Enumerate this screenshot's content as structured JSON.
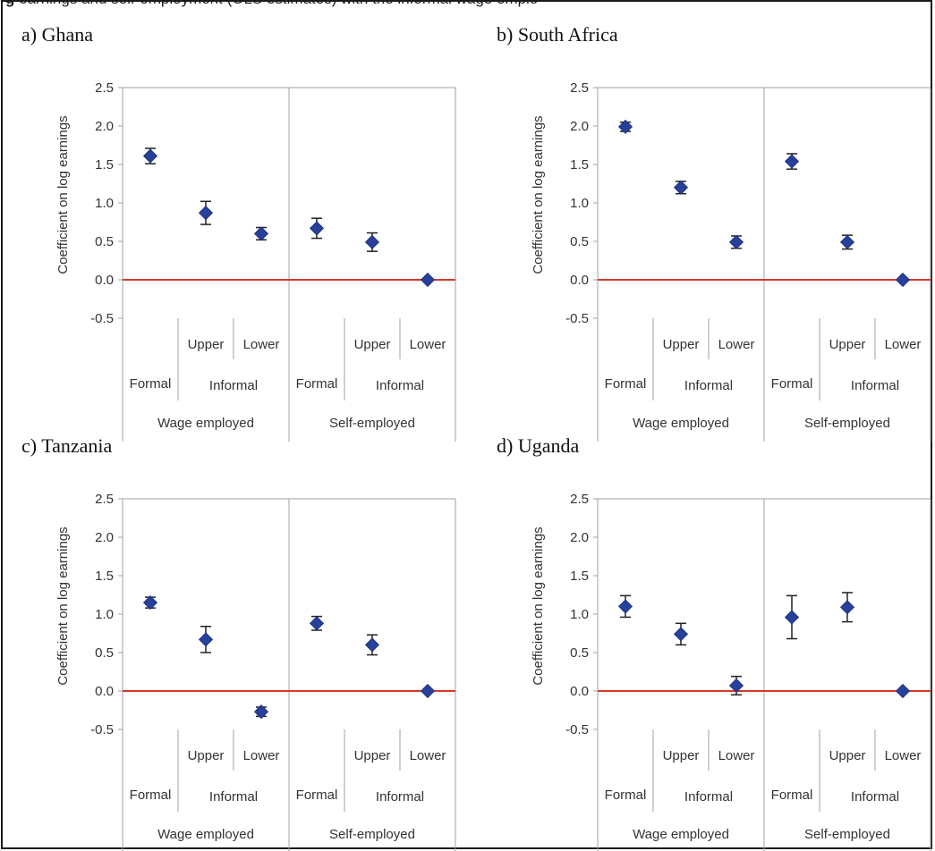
{
  "caption": {
    "lead": "g",
    "text": "earnings and self-employment (OLS estimates) with the informal wage emplo"
  },
  "colors": {
    "marker": "#27409a",
    "errorbar": "#222222",
    "zero_line": "#d63a2a",
    "divider": "#a0a0a0",
    "frame": "#1a1a1a"
  },
  "chart_data": [
    {
      "type": "scatter",
      "title": "a) Ghana",
      "ylabel": "Coefficient on log earnings",
      "ylim": [
        -0.5,
        2.5
      ],
      "yticks": [
        "2.5",
        "2.0",
        "1.5",
        "1.0",
        "0.5",
        "0.0",
        "-0.5"
      ],
      "categories": [
        {
          "group": "Wage employed",
          "sub": "",
          "type": "Formal"
        },
        {
          "group": "Wage employed",
          "sub": "Informal",
          "type": "Upper"
        },
        {
          "group": "Wage employed",
          "sub": "Informal",
          "type": "Lower"
        },
        {
          "group": "Self-employed",
          "sub": "",
          "type": "Formal"
        },
        {
          "group": "Self-employed",
          "sub": "Informal",
          "type": "Upper"
        },
        {
          "group": "Self-employed",
          "sub": "Informal",
          "type": "Lower"
        }
      ],
      "values": [
        1.61,
        0.87,
        0.6,
        0.67,
        0.49,
        0.0
      ],
      "ci_low": [
        1.51,
        0.72,
        0.52,
        0.54,
        0.37,
        0.0
      ],
      "ci_high": [
        1.71,
        1.02,
        0.68,
        0.8,
        0.61,
        0.0
      ],
      "zero_line": true
    },
    {
      "type": "scatter",
      "title": "b) South Africa",
      "ylabel": "Coefficient on log earnings",
      "ylim": [
        -0.5,
        2.5
      ],
      "yticks": [
        "2.5",
        "2.0",
        "1.5",
        "1.0",
        "0.5",
        "0.0",
        "-0.5"
      ],
      "categories": [
        {
          "group": "Wage employed",
          "sub": "",
          "type": "Formal"
        },
        {
          "group": "Wage employed",
          "sub": "Informal",
          "type": "Upper"
        },
        {
          "group": "Wage employed",
          "sub": "Informal",
          "type": "Lower"
        },
        {
          "group": "Self-employed",
          "sub": "",
          "type": "Formal"
        },
        {
          "group": "Self-employed",
          "sub": "Informal",
          "type": "Upper"
        },
        {
          "group": "Self-employed",
          "sub": "Informal",
          "type": "Lower"
        }
      ],
      "values": [
        1.99,
        1.2,
        0.49,
        1.54,
        0.49,
        0.0
      ],
      "ci_low": [
        1.93,
        1.12,
        0.41,
        1.44,
        0.4,
        0.0
      ],
      "ci_high": [
        2.05,
        1.28,
        0.57,
        1.64,
        0.58,
        0.0
      ],
      "zero_line": true
    },
    {
      "type": "scatter",
      "title": "c) Tanzania",
      "ylabel": "Coefficient on log earnings",
      "ylim": [
        -0.5,
        2.5
      ],
      "yticks": [
        "2.5",
        "2.0",
        "1.5",
        "1.0",
        "0.5",
        "0.0",
        "-0.5"
      ],
      "categories": [
        {
          "group": "Wage employed",
          "sub": "",
          "type": "Formal"
        },
        {
          "group": "Wage employed",
          "sub": "Informal",
          "type": "Upper"
        },
        {
          "group": "Wage employed",
          "sub": "Informal",
          "type": "Lower"
        },
        {
          "group": "Self-employed",
          "sub": "",
          "type": "Formal"
        },
        {
          "group": "Self-employed",
          "sub": "Informal",
          "type": "Upper"
        },
        {
          "group": "Self-employed",
          "sub": "Informal",
          "type": "Lower"
        }
      ],
      "values": [
        1.15,
        0.67,
        -0.27,
        0.88,
        0.6,
        0.0
      ],
      "ci_low": [
        1.08,
        0.5,
        -0.33,
        0.79,
        0.47,
        0.0
      ],
      "ci_high": [
        1.22,
        0.84,
        -0.21,
        0.97,
        0.73,
        0.0
      ],
      "zero_line": true
    },
    {
      "type": "scatter",
      "title": "d) Uganda",
      "ylabel": "Coefficient on log earnings",
      "ylim": [
        -0.5,
        2.5
      ],
      "yticks": [
        "2.5",
        "2.0",
        "1.5",
        "1.0",
        "0.5",
        "0.0",
        "-0.5"
      ],
      "categories": [
        {
          "group": "Wage employed",
          "sub": "",
          "type": "Formal"
        },
        {
          "group": "Wage employed",
          "sub": "Informal",
          "type": "Upper"
        },
        {
          "group": "Wage employed",
          "sub": "Informal",
          "type": "Lower"
        },
        {
          "group": "Self-employed",
          "sub": "",
          "type": "Formal"
        },
        {
          "group": "Self-employed",
          "sub": "Informal",
          "type": "Upper"
        },
        {
          "group": "Self-employed",
          "sub": "Informal",
          "type": "Lower"
        }
      ],
      "values": [
        1.1,
        0.74,
        0.07,
        0.96,
        1.09,
        0.0
      ],
      "ci_low": [
        0.96,
        0.6,
        -0.05,
        0.68,
        0.9,
        0.0
      ],
      "ci_high": [
        1.24,
        0.88,
        0.19,
        1.24,
        1.28,
        0.0
      ],
      "zero_line": true
    }
  ]
}
